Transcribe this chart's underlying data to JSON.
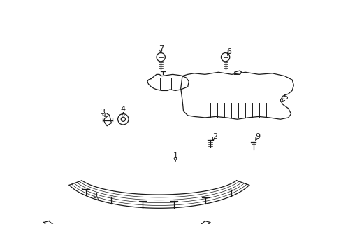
{
  "background_color": "#ffffff",
  "line_color": "#1a1a1a",
  "lw": 0.9
}
